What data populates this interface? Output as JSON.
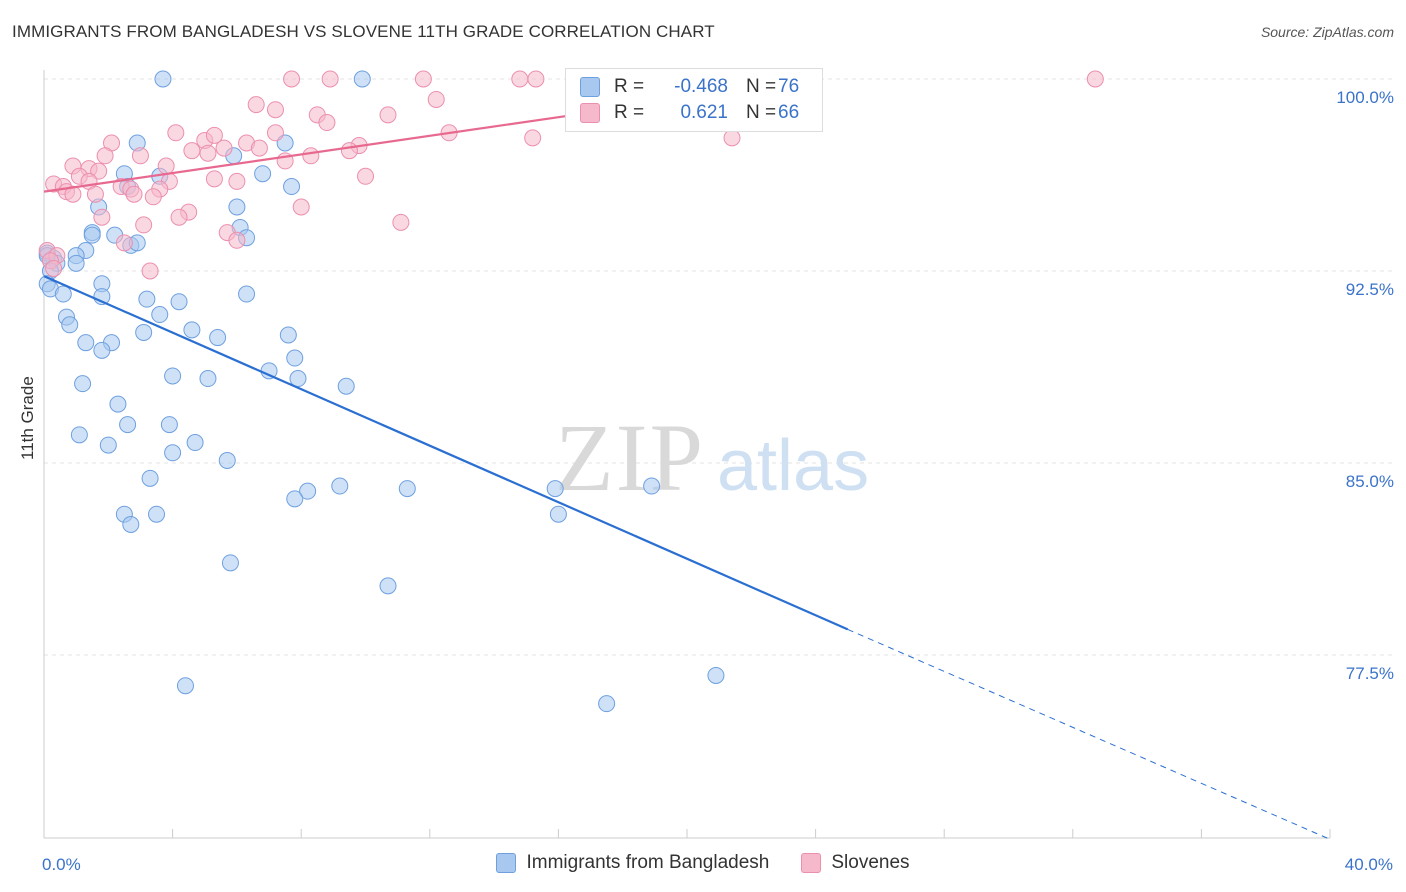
{
  "title": "IMMIGRANTS FROM BANGLADESH VS SLOVENE 11TH GRADE CORRELATION CHART",
  "source": "Source: ZipAtlas.com",
  "watermark": {
    "zip": "ZIP",
    "atlas": "atlas"
  },
  "colors": {
    "blue": "#a8c8f0",
    "blue_edge": "#6ea0e0",
    "blue_line": "#2a6fd1",
    "pink": "#f6b8cb",
    "pink_edge": "#ec8fae",
    "pink_line": "#e8698f",
    "tick_label": "#3a73c9"
  },
  "stats_legend": [
    {
      "r_label": "R =",
      "r_value": "-0.468",
      "n_label": "N =",
      "n_value": "76",
      "color": "blue"
    },
    {
      "r_label": "R =",
      "r_value": " 0.621",
      "n_label": "N =",
      "n_value": "66",
      "color": "pink"
    }
  ],
  "chart_data": {
    "type": "scatter",
    "title": "IMMIGRANTS FROM BANGLADESH VS SLOVENE 11TH GRADE CORRELATION CHART",
    "xlabel": "",
    "ylabel": "11th Grade",
    "xlim": [
      0,
      40
    ],
    "ylim": [
      70,
      100.5
    ],
    "x_tick_labels": [
      {
        "value": 0,
        "label": "0.0%"
      },
      {
        "value": 40,
        "label": "40.0%"
      }
    ],
    "y_tick_labels": [
      {
        "value": 100,
        "label": "100.0%"
      },
      {
        "value": 92.5,
        "label": "92.5%"
      },
      {
        "value": 85,
        "label": "85.0%"
      },
      {
        "value": 77.5,
        "label": "77.5%"
      }
    ],
    "x_minor_ticks": [
      4,
      8,
      12,
      16,
      20,
      24,
      28,
      32,
      36,
      40
    ],
    "grid": true,
    "legend_position": "bottom-center",
    "series": [
      {
        "name": "Immigrants from Bangladesh",
        "color": "blue",
        "trend": {
          "x0": 0,
          "y0": 92.3,
          "x1": 25,
          "y1": 78.5,
          "dash_to_x": 40,
          "dash_to_y": 70.3
        },
        "points": [
          [
            3.7,
            100
          ],
          [
            9.9,
            100
          ],
          [
            2.9,
            97.5
          ],
          [
            7.5,
            97.5
          ],
          [
            5.9,
            97.0
          ],
          [
            2.5,
            96.3
          ],
          [
            3.6,
            96.2
          ],
          [
            6.8,
            96.3
          ],
          [
            7.7,
            95.8
          ],
          [
            2.6,
            95.8
          ],
          [
            6.0,
            95.0
          ],
          [
            1.7,
            95.0
          ],
          [
            6.1,
            94.2
          ],
          [
            1.5,
            94.0
          ],
          [
            1.5,
            93.9
          ],
          [
            2.2,
            93.9
          ],
          [
            6.3,
            93.8
          ],
          [
            2.7,
            93.5
          ],
          [
            2.9,
            93.6
          ],
          [
            0.1,
            93.2
          ],
          [
            1.3,
            93.3
          ],
          [
            0.3,
            93.0
          ],
          [
            1.0,
            93.1
          ],
          [
            0.4,
            92.8
          ],
          [
            1.0,
            92.8
          ],
          [
            0.2,
            92.5
          ],
          [
            0.1,
            92.0
          ],
          [
            1.8,
            92.0
          ],
          [
            0.2,
            91.8
          ],
          [
            0.6,
            91.6
          ],
          [
            6.3,
            91.6
          ],
          [
            1.8,
            91.5
          ],
          [
            3.2,
            91.4
          ],
          [
            4.2,
            91.3
          ],
          [
            3.6,
            90.8
          ],
          [
            0.7,
            90.7
          ],
          [
            0.8,
            90.4
          ],
          [
            4.6,
            90.2
          ],
          [
            7.6,
            90.0
          ],
          [
            3.1,
            90.1
          ],
          [
            5.4,
            89.9
          ],
          [
            1.3,
            89.7
          ],
          [
            2.1,
            89.7
          ],
          [
            1.8,
            89.4
          ],
          [
            7.8,
            89.1
          ],
          [
            7.0,
            88.6
          ],
          [
            4.0,
            88.4
          ],
          [
            5.1,
            88.3
          ],
          [
            7.9,
            88.3
          ],
          [
            1.2,
            88.1
          ],
          [
            9.4,
            88.0
          ],
          [
            2.3,
            87.3
          ],
          [
            3.9,
            86.5
          ],
          [
            2.6,
            86.5
          ],
          [
            1.1,
            86.1
          ],
          [
            4.7,
            85.8
          ],
          [
            2.0,
            85.7
          ],
          [
            4.0,
            85.4
          ],
          [
            5.7,
            85.1
          ],
          [
            3.3,
            84.4
          ],
          [
            9.2,
            84.1
          ],
          [
            8.2,
            83.9
          ],
          [
            11.3,
            84.0
          ],
          [
            15.9,
            84.0
          ],
          [
            18.9,
            84.1
          ],
          [
            7.8,
            83.6
          ],
          [
            2.5,
            83.0
          ],
          [
            3.5,
            83.0
          ],
          [
            16.0,
            83.0
          ],
          [
            2.7,
            82.6
          ],
          [
            5.8,
            81.1
          ],
          [
            10.7,
            80.2
          ],
          [
            4.4,
            76.3
          ],
          [
            20.9,
            76.7
          ],
          [
            17.5,
            75.6
          ],
          [
            0.1,
            93.1
          ]
        ]
      },
      {
        "name": "Slovenes",
        "color": "pink",
        "trend": {
          "x0": 0,
          "y0": 95.6,
          "x1": 24.2,
          "y1": 100.0
        },
        "points": [
          [
            7.7,
            100
          ],
          [
            8.9,
            100
          ],
          [
            11.8,
            100
          ],
          [
            14.8,
            100
          ],
          [
            15.3,
            100
          ],
          [
            32.7,
            100
          ],
          [
            6.6,
            99.0
          ],
          [
            12.2,
            99.2
          ],
          [
            7.2,
            98.8
          ],
          [
            8.5,
            98.6
          ],
          [
            10.7,
            98.6
          ],
          [
            8.8,
            98.3
          ],
          [
            23.0,
            98.3
          ],
          [
            4.1,
            97.9
          ],
          [
            7.2,
            97.9
          ],
          [
            12.6,
            97.9
          ],
          [
            15.2,
            97.7
          ],
          [
            21.4,
            97.7
          ],
          [
            5.0,
            97.6
          ],
          [
            2.1,
            97.5
          ],
          [
            6.3,
            97.5
          ],
          [
            9.8,
            97.4
          ],
          [
            5.6,
            97.3
          ],
          [
            6.7,
            97.3
          ],
          [
            4.6,
            97.2
          ],
          [
            9.5,
            97.2
          ],
          [
            5.1,
            97.1
          ],
          [
            3.0,
            97.0
          ],
          [
            1.9,
            97.0
          ],
          [
            8.3,
            97.0
          ],
          [
            7.5,
            96.8
          ],
          [
            0.9,
            96.6
          ],
          [
            3.8,
            96.6
          ],
          [
            1.4,
            96.5
          ],
          [
            1.7,
            96.4
          ],
          [
            10.0,
            96.2
          ],
          [
            1.1,
            96.2
          ],
          [
            1.4,
            96.0
          ],
          [
            3.9,
            96.0
          ],
          [
            5.3,
            96.1
          ],
          [
            6.0,
            96.0
          ],
          [
            0.3,
            95.9
          ],
          [
            0.6,
            95.8
          ],
          [
            2.4,
            95.8
          ],
          [
            2.7,
            95.7
          ],
          [
            3.6,
            95.7
          ],
          [
            0.7,
            95.6
          ],
          [
            0.9,
            95.5
          ],
          [
            1.6,
            95.5
          ],
          [
            2.8,
            95.5
          ],
          [
            3.4,
            95.4
          ],
          [
            8.0,
            95.0
          ],
          [
            4.5,
            94.8
          ],
          [
            1.8,
            94.6
          ],
          [
            4.2,
            94.6
          ],
          [
            11.1,
            94.4
          ],
          [
            3.1,
            94.3
          ],
          [
            5.7,
            94.0
          ],
          [
            6.0,
            93.7
          ],
          [
            2.5,
            93.6
          ],
          [
            0.1,
            93.3
          ],
          [
            0.4,
            93.1
          ],
          [
            0.2,
            92.9
          ],
          [
            0.3,
            92.6
          ],
          [
            3.3,
            92.5
          ],
          [
            5.3,
            97.8
          ]
        ]
      }
    ]
  },
  "bottom_legend": [
    {
      "label": "Immigrants from Bangladesh",
      "color": "blue"
    },
    {
      "label": "Slovenes",
      "color": "pink"
    }
  ]
}
